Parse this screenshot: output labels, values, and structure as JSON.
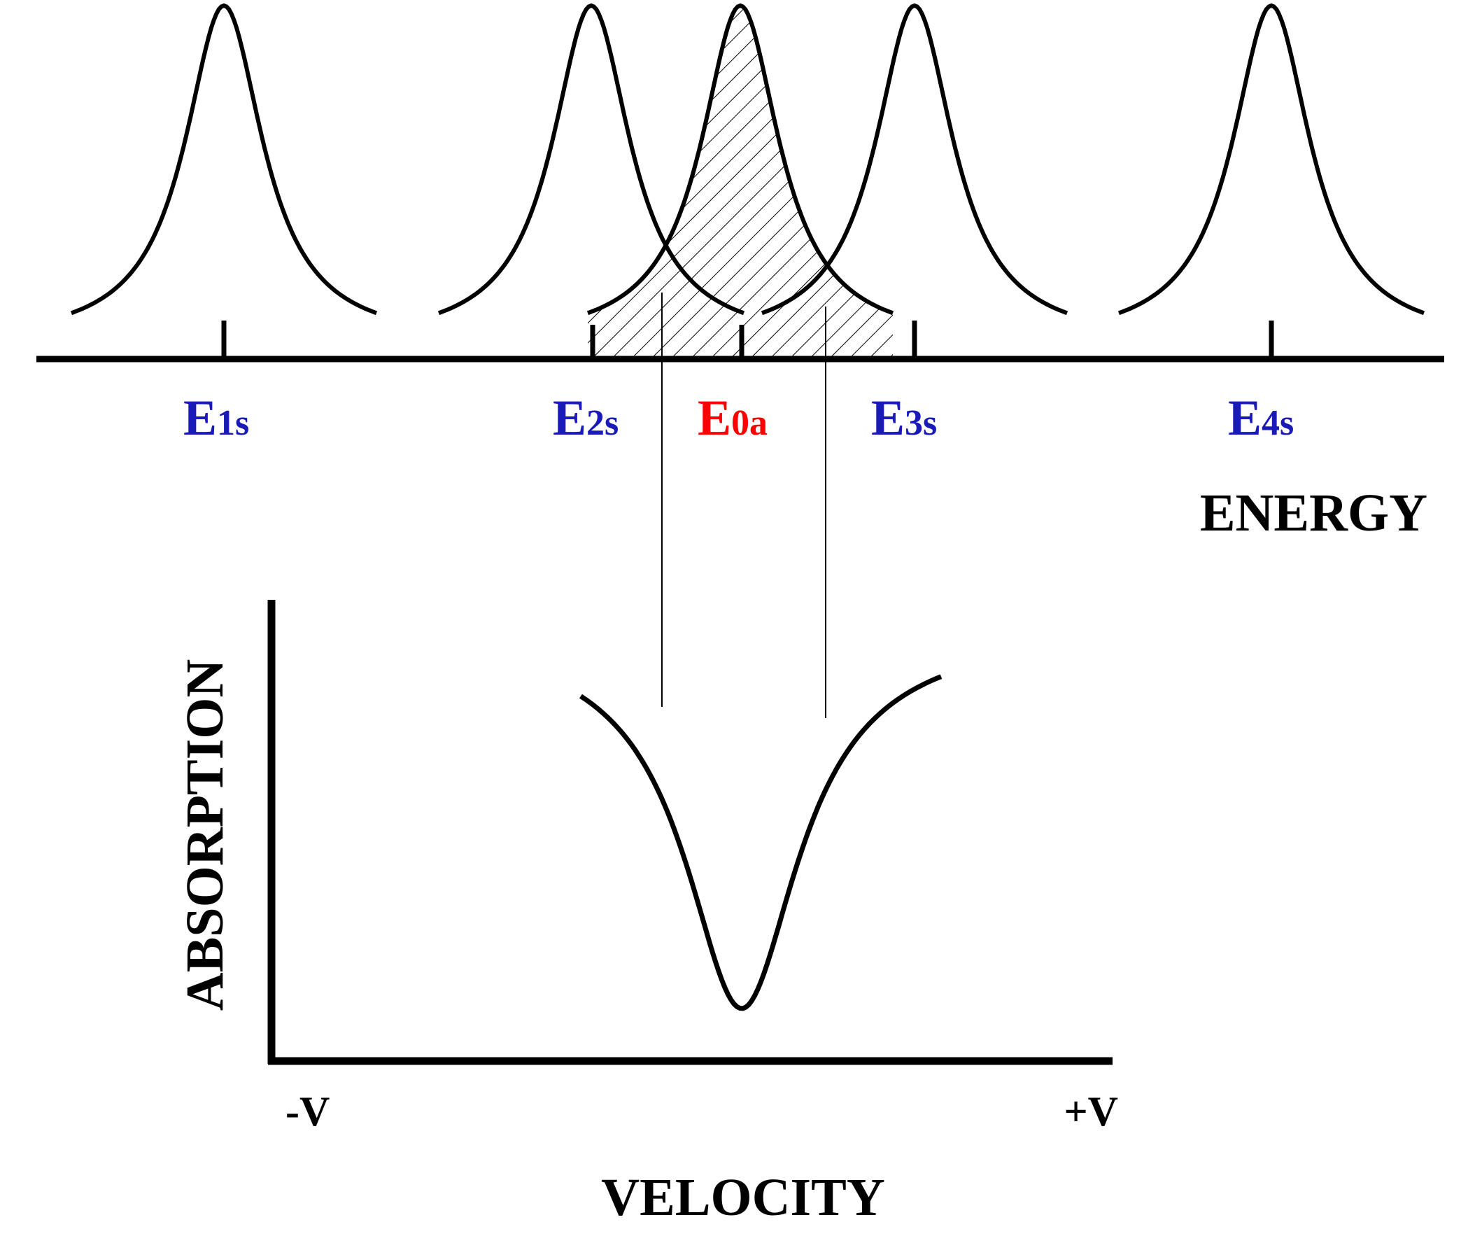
{
  "colors": {
    "source_line_color": "#1a1ab8",
    "absorber_line_color": "#ff0000",
    "line_color": "#000000"
  },
  "energy_axis": {
    "label": "ENERGY",
    "source_lines": [
      {
        "letter": "E",
        "subscript": "1s"
      },
      {
        "letter": "E",
        "subscript": "2s"
      },
      {
        "letter": "E",
        "subscript": "3s"
      },
      {
        "letter": "E",
        "subscript": "4s"
      }
    ],
    "absorber_line": {
      "letter": "E",
      "subscript": "0a"
    }
  },
  "velocity_plot": {
    "ylabel": "ABSORPTION",
    "xlabel": "VELOCITY",
    "x_min_label": "-V",
    "x_max_label": "+V"
  }
}
